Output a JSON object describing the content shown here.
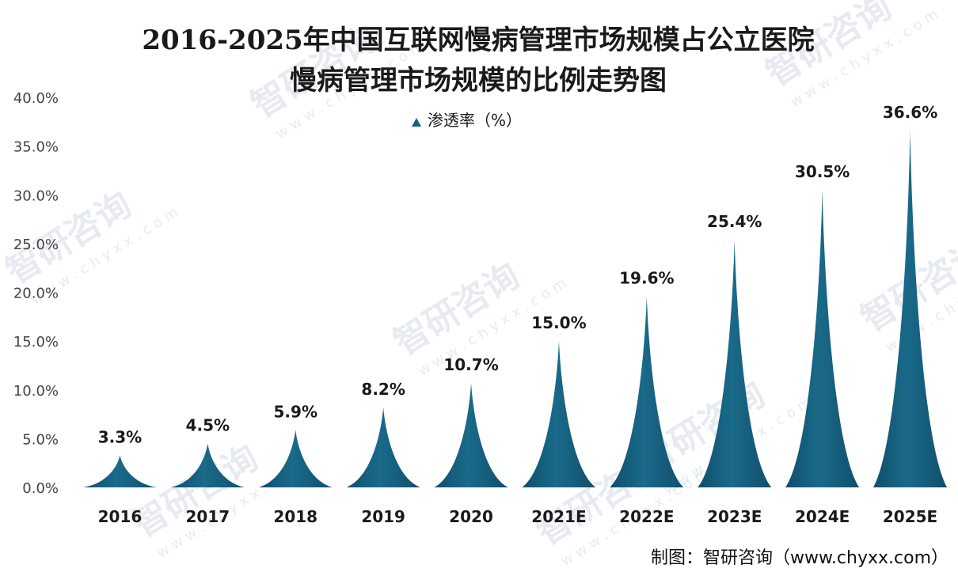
{
  "chart_data": {
    "type": "bar",
    "bar_shape": "spike",
    "title_lines": [
      "2016-2025年中国互联网慢病管理市场规模占公立医院",
      "慢病管理市场规模的比例走势图"
    ],
    "categories": [
      "2016",
      "2017",
      "2018",
      "2019",
      "2020",
      "2021E",
      "2022E",
      "2023E",
      "2024E",
      "2025E"
    ],
    "series": [
      {
        "name": "渗透率（%）",
        "values": [
          3.3,
          4.5,
          5.9,
          8.2,
          10.7,
          15.0,
          19.6,
          25.4,
          30.5,
          36.6
        ],
        "labels": [
          "3.3%",
          "4.5%",
          "5.9%",
          "8.2%",
          "10.7%",
          "15.0%",
          "19.6%",
          "25.4%",
          "30.5%",
          "36.6%"
        ],
        "color": "#17627f"
      }
    ],
    "ylim": [
      0,
      40
    ],
    "yticks": [
      "0.0%",
      "5.0%",
      "10.0%",
      "15.0%",
      "20.0%",
      "25.0%",
      "30.0%",
      "35.0%",
      "40.0%"
    ],
    "xlabel": "",
    "ylabel": "",
    "grid": false,
    "legend_position": "top"
  },
  "source": "制图：智研咨询（www.chyxx.com）",
  "watermark": {
    "brand": "智研咨询",
    "url": "w w w . c h y x x . c o m"
  }
}
